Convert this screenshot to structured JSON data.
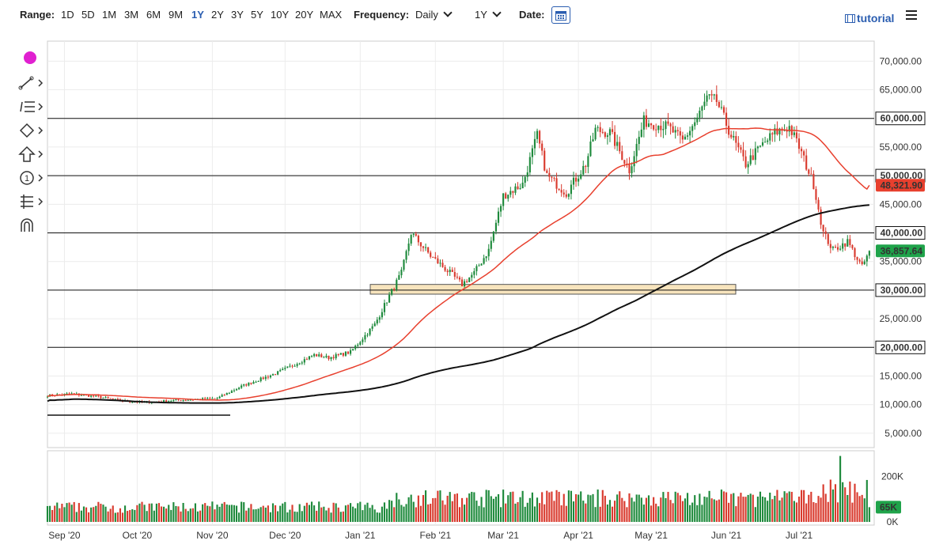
{
  "toolbar": {
    "range_label": "Range:",
    "ranges": [
      "1D",
      "5D",
      "1M",
      "3M",
      "6M",
      "9M",
      "1Y",
      "2Y",
      "3Y",
      "5Y",
      "10Y",
      "20Y",
      "MAX"
    ],
    "active_range": "1Y",
    "frequency_label": "Frequency:",
    "frequency_value": "Daily",
    "period_value": "1Y",
    "date_label": "Date:",
    "tutorial_label": "tutorial"
  },
  "drawing_tools": [
    "color-dot-icon",
    "trendline-icon",
    "fib-icon",
    "pattern-icon",
    "arrow-icon",
    "annotation-icon",
    "measure-icon",
    "magnet-icon"
  ],
  "colors": {
    "up": "#1e8a3c",
    "down": "#d93a2e",
    "ma_short": "#e8402e",
    "ma_long": "#111111",
    "zone_fill": "#f7e4bd",
    "price_badge": "#1fa34a",
    "ma_badge": "#e8402e",
    "tool_dot": "#e020d0"
  },
  "chart_data": {
    "type": "candlestick",
    "x_tick_labels": [
      "Sep '20",
      "Oct '20",
      "Nov '20",
      "Dec '20",
      "Jan '21",
      "Feb '21",
      "Mar '21",
      "Apr '21",
      "May '21",
      "Jun '21",
      "Jul '21"
    ],
    "y_tick_labels": [
      "5,000.00",
      "10,000.00",
      "15,000.00",
      "20,000.00",
      "25,000.00",
      "30,000.00",
      "35,000.00",
      "40,000.00",
      "45,000.00",
      "50,000.00",
      "55,000.00",
      "60,000.00",
      "65,000.00",
      "70,000.00"
    ],
    "y_ticks": [
      5000,
      10000,
      15000,
      20000,
      25000,
      30000,
      35000,
      40000,
      45000,
      50000,
      55000,
      60000,
      65000,
      70000
    ],
    "ylim": [
      2500,
      73500
    ],
    "horizontal_levels": [
      {
        "value": 60000,
        "label": "60,000.00"
      },
      {
        "value": 50000,
        "label": "50,000.00"
      },
      {
        "value": 40000,
        "label": "40,000.00"
      },
      {
        "value": 30000,
        "label": "30,000.00"
      },
      {
        "value": 20000,
        "label": "20,000.00"
      }
    ],
    "support_zone": [
      29300,
      31000
    ],
    "last_price": {
      "value": 36857.64,
      "label": "36,857.64"
    },
    "ma_short_last": {
      "value": 48321.9,
      "label": "48,321.90"
    },
    "volume_tick_labels": [
      "200K",
      "0K"
    ],
    "volume_ticks": [
      200000,
      0
    ],
    "volume_last": {
      "value": 65000,
      "label": "65K"
    },
    "volume_max": 300000
  }
}
